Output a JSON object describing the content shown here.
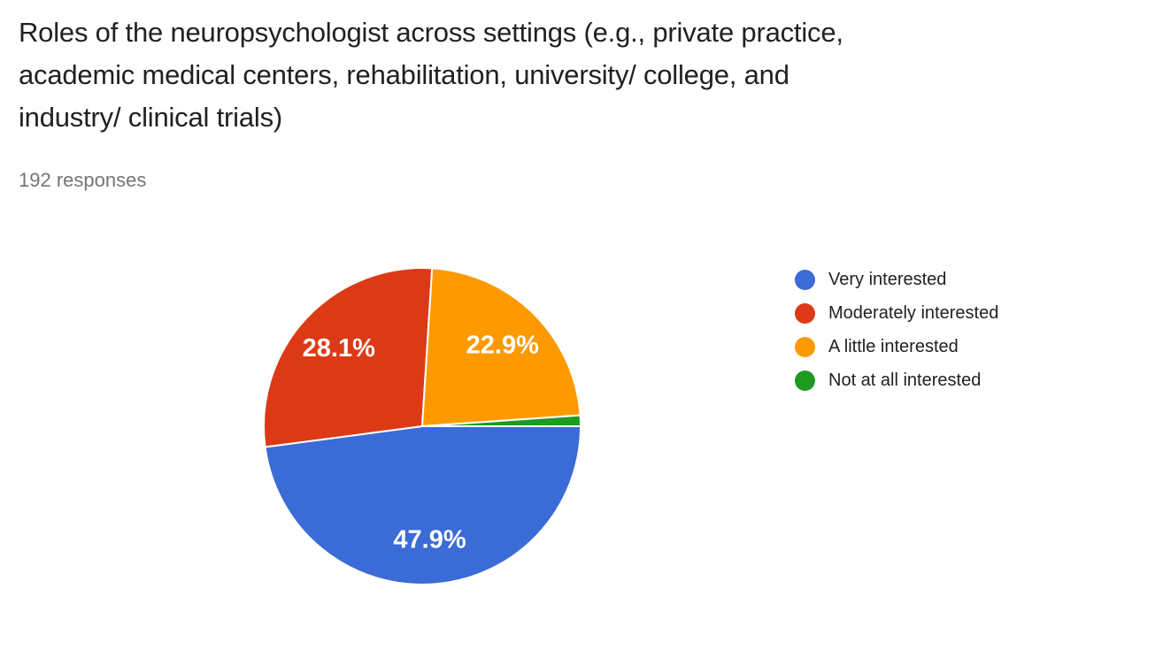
{
  "page": {
    "title": "Roles of the neuropsychologist across settings (e.g., private practice, academic medical centers, rehabilitation, university/ college, and industry/ clinical trials)",
    "title_lines": [
      "Roles of the neuropsychologist across settings (e.g., private practice,",
      "academic medical centers, rehabilitation, university/ college, and",
      "industry/ clinical trials)"
    ],
    "responses_label": "192 responses",
    "responses_count": 192
  },
  "colors": {
    "background": "#FFFFFF",
    "title_text": "#212121",
    "subtitle_text": "#757575",
    "slice_label_text": "#FFFFFF"
  },
  "chart_data": {
    "type": "pie",
    "title": "Roles of the neuropsychologist across settings (e.g., private practice, academic medical centers, rehabilitation, university/ college, and industry/ clinical trials)",
    "subtitle": "192 responses",
    "categories": [
      "Very interested",
      "Moderately interested",
      "A little interested",
      "Not at all interested"
    ],
    "values": [
      47.9,
      28.1,
      22.9,
      1.1
    ],
    "slice_labels": [
      "47.9%",
      "28.1%",
      "22.9%",
      ""
    ],
    "colors": [
      "#3B6BD6",
      "#DC3A16",
      "#FF9900",
      "#1E9A23"
    ],
    "legend_position": "right",
    "layout": {
      "start_angle_deg": 90,
      "direction": "clockwise",
      "label_color": "#FFFFFF",
      "gap_stroke": "#FFFFFF"
    }
  }
}
